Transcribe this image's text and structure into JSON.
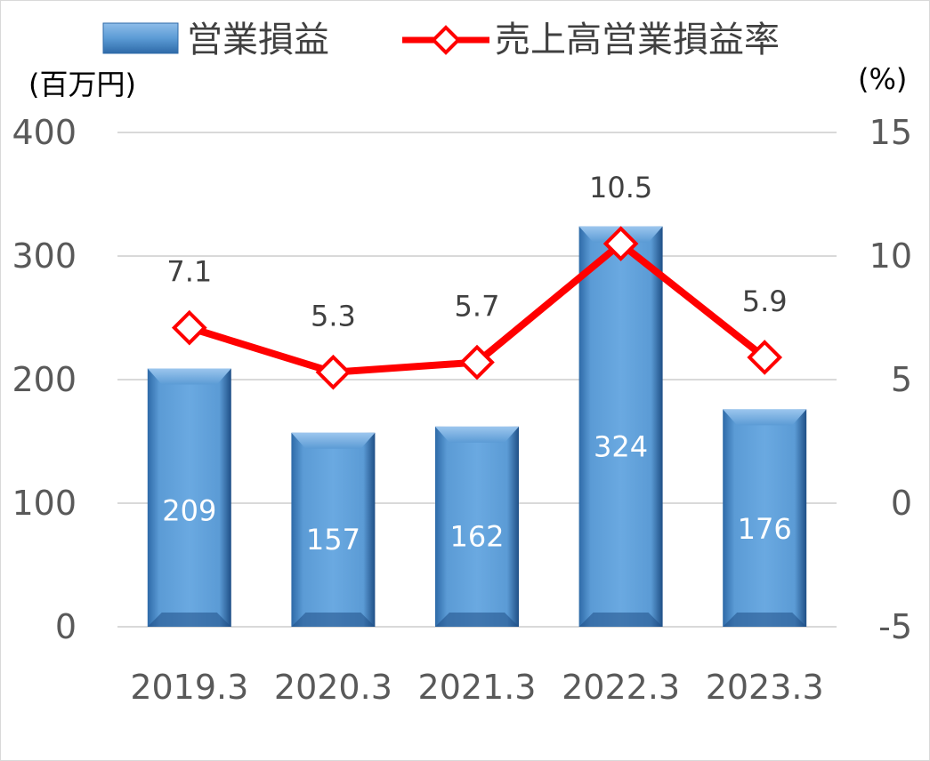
{
  "chart_data": {
    "type": "bar",
    "categories": [
      "2019.3",
      "2020.3",
      "2021.3",
      "2022.3",
      "2023.3"
    ],
    "series": [
      {
        "name": "営業損益",
        "type": "bar",
        "axis": "left",
        "values": [
          209,
          157,
          162,
          324,
          176
        ],
        "data_labels": [
          "209",
          "157",
          "162",
          "324",
          "176"
        ],
        "color": "#5b9bd5"
      },
      {
        "name": "売上高営業損益率",
        "type": "line",
        "axis": "right",
        "values": [
          7.1,
          5.3,
          5.7,
          10.5,
          5.9
        ],
        "data_labels": [
          "7.1",
          "5.3",
          "5.7",
          "10.5",
          "5.9"
        ],
        "color": "#ff0000",
        "marker": "diamond"
      }
    ],
    "y_left": {
      "unit_label": "(百万円)",
      "ylim": [
        0,
        400
      ],
      "ticks": [
        "0",
        "100",
        "200",
        "300",
        "400"
      ]
    },
    "y_right": {
      "unit_label": "(%)",
      "ylim": [
        -5,
        15
      ],
      "ticks": [
        "-5",
        "0",
        "5",
        "10",
        "15"
      ]
    },
    "grid": true,
    "legend_position": "top",
    "colors": {
      "bar": "#5b9bd5",
      "line": "#ff0000",
      "grid": "#d9d9d9",
      "tick_text": "#595959"
    }
  }
}
